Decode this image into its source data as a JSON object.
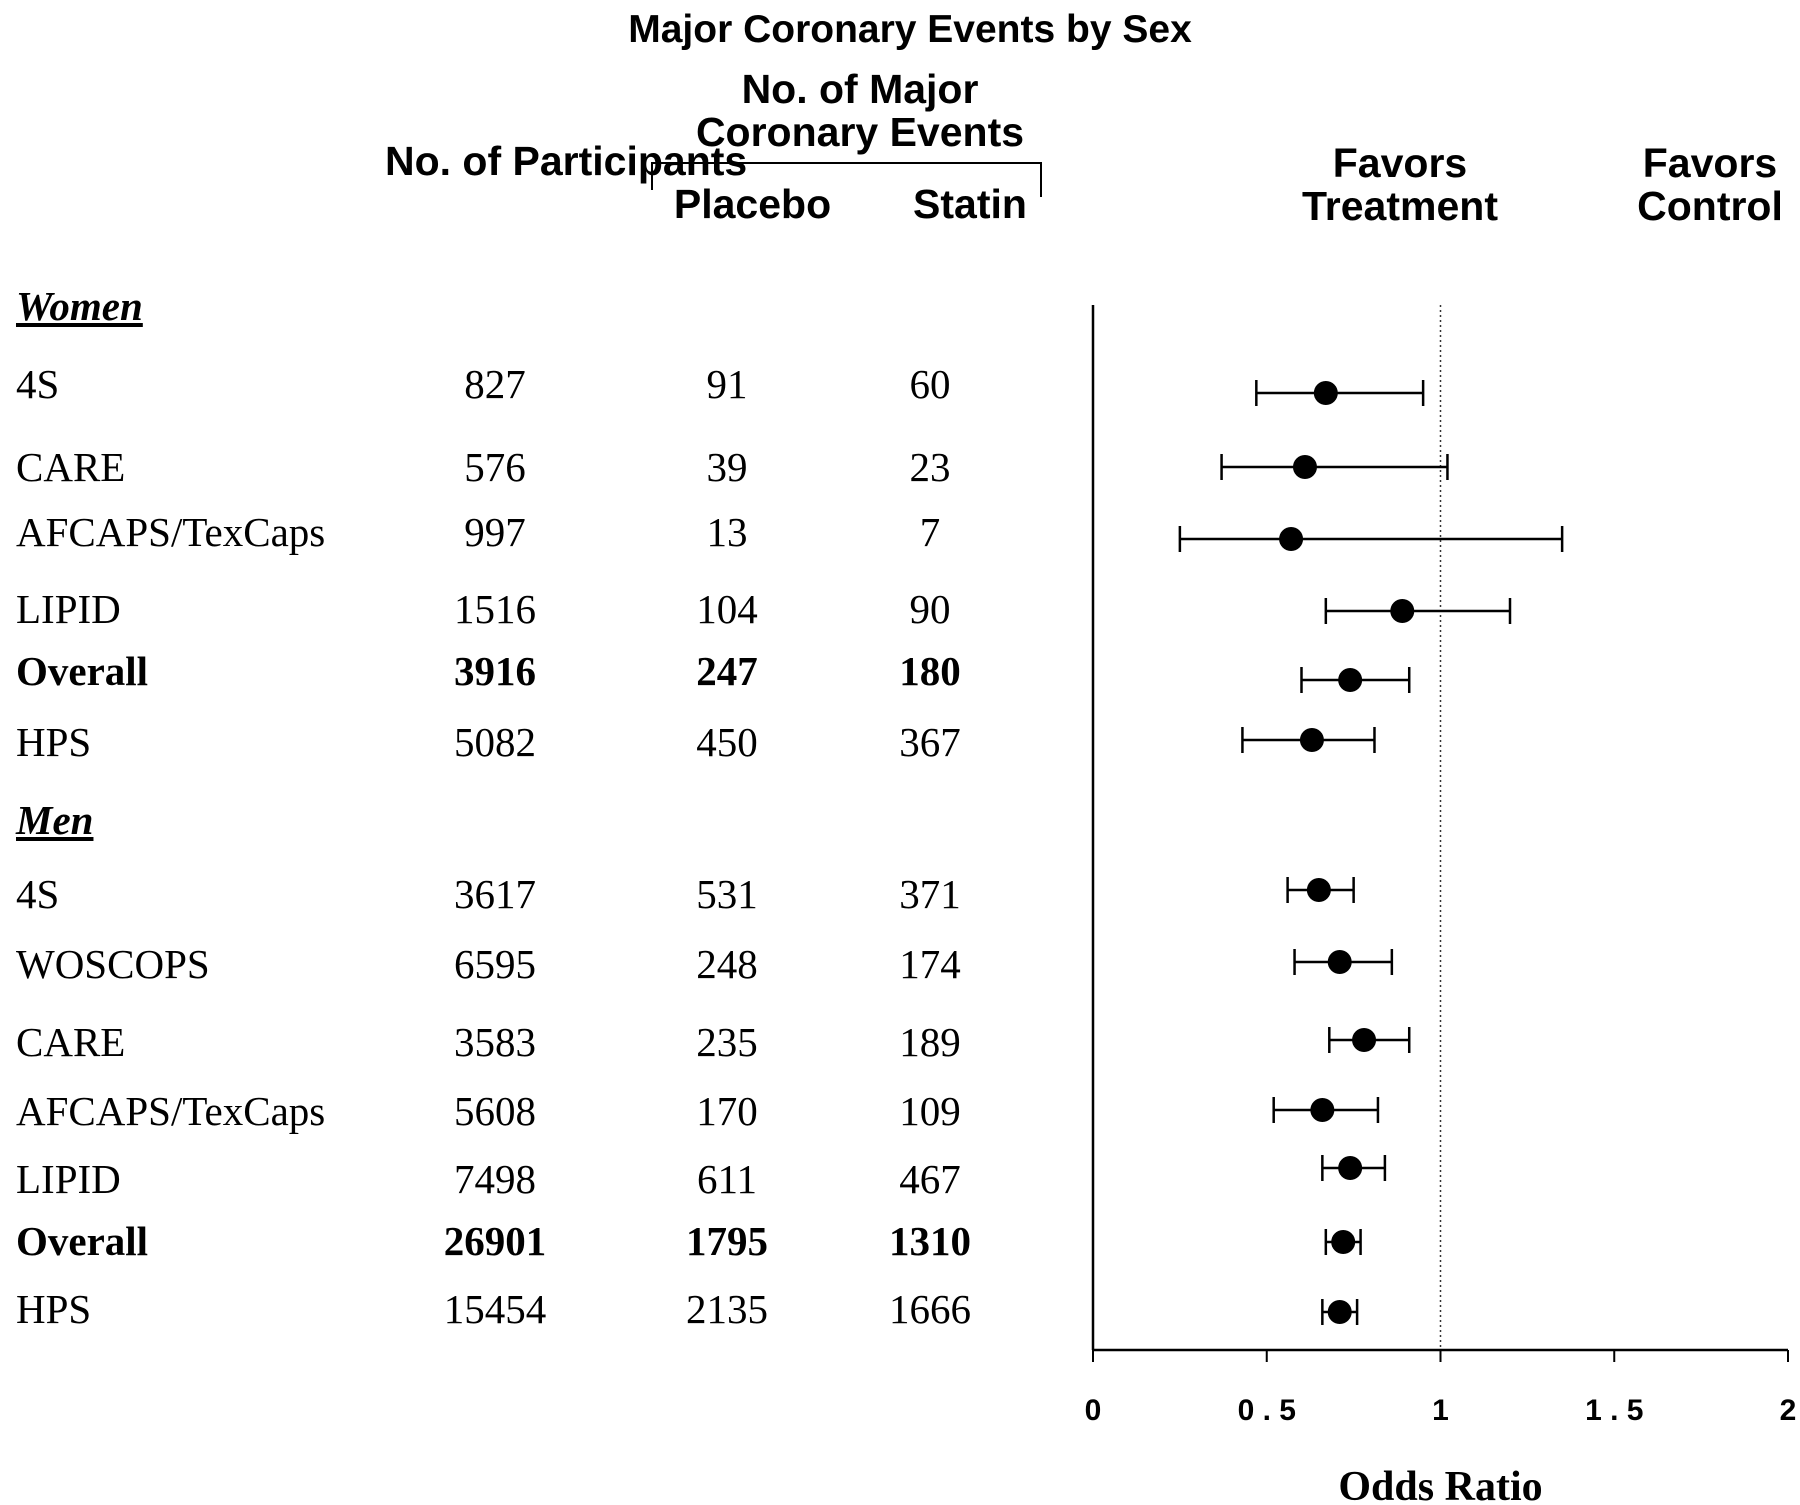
{
  "title": "Major Coronary Events by Sex",
  "headers": {
    "participants": "No. of Participants",
    "events_group": "No. of Major Coronary Events",
    "placebo": "Placebo",
    "statin": "Statin",
    "favors_treatment": "Favors Treatment",
    "favors_control": "Favors Control"
  },
  "sections": [
    {
      "label": "Women",
      "rows": [
        {
          "name": "4S",
          "participants": "827",
          "placebo": "91",
          "statin": "60",
          "bold": false
        },
        {
          "name": "CARE",
          "participants": "576",
          "placebo": "39",
          "statin": "23",
          "bold": false
        },
        {
          "name": "AFCAPS/TexCaps",
          "participants": "997",
          "placebo": "13",
          "statin": "7",
          "bold": false
        },
        {
          "name": "LIPID",
          "participants": "1516",
          "placebo": "104",
          "statin": "90",
          "bold": false
        },
        {
          "name": "Overall",
          "participants": "3916",
          "placebo": "247",
          "statin": "180",
          "bold": true
        },
        {
          "name": "HPS",
          "participants": "5082",
          "placebo": "450",
          "statin": "367",
          "bold": false
        }
      ]
    },
    {
      "label": "Men",
      "rows": [
        {
          "name": "4S",
          "participants": "3617",
          "placebo": "531",
          "statin": "371",
          "bold": false
        },
        {
          "name": "WOSCOPS",
          "participants": "6595",
          "placebo": "248",
          "statin": "174",
          "bold": false
        },
        {
          "name": "CARE",
          "participants": "3583",
          "placebo": "235",
          "statin": "189",
          "bold": false
        },
        {
          "name": "AFCAPS/TexCaps",
          "participants": "5608",
          "placebo": "170",
          "statin": "109",
          "bold": false
        },
        {
          "name": "LIPID",
          "participants": "7498",
          "placebo": "611",
          "statin": "467",
          "bold": false
        },
        {
          "name": "Overall",
          "participants": "26901",
          "placebo": "1795",
          "statin": "1310",
          "bold": true
        },
        {
          "name": "HPS",
          "participants": "15454",
          "placebo": "2135",
          "statin": "1666",
          "bold": false
        }
      ]
    }
  ],
  "chart_data": {
    "type": "scatter",
    "subtype": "forest-plot",
    "title": "Major Coronary Events by Sex",
    "xlabel": "Odds Ratio",
    "xlim": [
      0,
      2
    ],
    "x_ticks": [
      0,
      0.5,
      1,
      1.5,
      2
    ],
    "x_tick_labels": [
      "0",
      "0 . 5",
      "1",
      "1 . 5",
      "2"
    ],
    "reference_line": 1,
    "grid": false,
    "points": [
      {
        "section": "Women",
        "name": "4S",
        "or": 0.67,
        "lo": 0.47,
        "hi": 0.95
      },
      {
        "section": "Women",
        "name": "CARE",
        "or": 0.61,
        "lo": 0.37,
        "hi": 1.02
      },
      {
        "section": "Women",
        "name": "AFCAPS/TexCaps",
        "or": 0.57,
        "lo": 0.25,
        "hi": 1.35
      },
      {
        "section": "Women",
        "name": "LIPID",
        "or": 0.89,
        "lo": 0.67,
        "hi": 1.2
      },
      {
        "section": "Women",
        "name": "Overall",
        "or": 0.74,
        "lo": 0.6,
        "hi": 0.91
      },
      {
        "section": "Women",
        "name": "HPS",
        "or": 0.63,
        "lo": 0.43,
        "hi": 0.81
      },
      {
        "section": "Men",
        "name": "4S",
        "or": 0.65,
        "lo": 0.56,
        "hi": 0.75
      },
      {
        "section": "Men",
        "name": "WOSCOPS",
        "or": 0.71,
        "lo": 0.58,
        "hi": 0.86
      },
      {
        "section": "Men",
        "name": "CARE",
        "or": 0.78,
        "lo": 0.68,
        "hi": 0.91
      },
      {
        "section": "Men",
        "name": "AFCAPS/TexCaps",
        "or": 0.66,
        "lo": 0.52,
        "hi": 0.82
      },
      {
        "section": "Men",
        "name": "LIPID",
        "or": 0.74,
        "lo": 0.66,
        "hi": 0.84
      },
      {
        "section": "Men",
        "name": "Overall",
        "or": 0.72,
        "lo": 0.67,
        "hi": 0.77
      },
      {
        "section": "Men",
        "name": "HPS",
        "or": 0.71,
        "lo": 0.66,
        "hi": 0.76
      }
    ]
  }
}
